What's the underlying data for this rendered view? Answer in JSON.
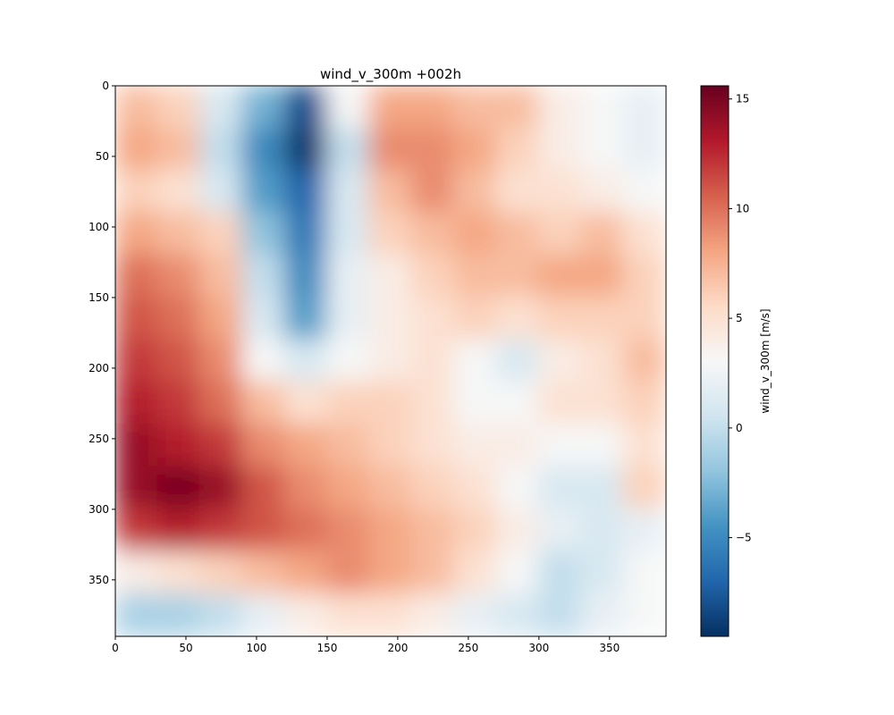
{
  "chart_data": {
    "type": "heatmap",
    "title": "wind_v_300m +002h",
    "xlabel": "",
    "ylabel": "",
    "colorbar_label": "wind_v_300m [m/s]",
    "colormap": "RdBu_r",
    "grid": false,
    "xlim": [
      0,
      390
    ],
    "ylim": [
      390,
      0
    ],
    "x_ticks": [
      0,
      50,
      100,
      150,
      200,
      250,
      300,
      350
    ],
    "y_ticks": [
      0,
      50,
      100,
      150,
      200,
      250,
      300,
      350
    ],
    "colorbar_range": [
      -9.5,
      15.6
    ],
    "colorbar_ticks": [
      -5,
      0,
      5,
      10,
      15
    ],
    "colorbar_tick_labels": [
      "−5",
      "0",
      "5",
      "10",
      "15"
    ],
    "grid_values": {
      "x_centers": [
        15,
        45,
        75,
        105,
        135,
        165,
        195,
        225,
        255,
        285,
        315,
        345,
        375
      ],
      "y_centers": [
        15,
        45,
        75,
        105,
        135,
        165,
        195,
        225,
        255,
        285,
        315,
        345,
        375
      ],
      "values": [
        [
          7,
          6,
          1,
          -3,
          -8,
          3,
          8,
          8,
          7,
          7,
          4,
          3,
          2
        ],
        [
          8,
          7,
          0,
          -5,
          -9,
          0,
          9,
          9,
          8,
          6,
          4,
          3,
          2
        ],
        [
          6,
          5,
          1,
          -4,
          -7,
          1,
          7,
          9,
          7,
          5,
          5,
          4,
          3
        ],
        [
          8,
          7,
          6,
          -2,
          -6,
          1,
          6,
          7,
          8,
          7,
          6,
          7,
          5
        ],
        [
          10,
          9,
          7,
          0,
          -5,
          2,
          4,
          6,
          7,
          7,
          8,
          8,
          6
        ],
        [
          11,
          10,
          8,
          1,
          -4,
          2,
          4,
          5,
          6,
          5,
          6,
          6,
          6
        ],
        [
          12,
          11,
          9,
          3,
          1,
          3,
          4,
          5,
          3,
          1,
          4,
          5,
          7
        ],
        [
          13,
          12,
          10,
          7,
          5,
          6,
          6,
          5,
          3,
          3,
          5,
          5,
          6
        ],
        [
          14,
          13,
          12,
          9,
          8,
          7,
          6,
          5,
          4,
          4,
          3,
          3,
          5
        ],
        [
          14,
          15,
          14,
          11,
          9,
          8,
          7,
          6,
          5,
          3,
          1,
          1,
          6
        ],
        [
          12,
          13,
          12,
          11,
          10,
          9,
          8,
          7,
          6,
          4,
          2,
          1,
          2
        ],
        [
          4,
          5,
          6,
          7,
          8,
          9,
          8,
          7,
          5,
          3,
          0,
          1,
          3
        ],
        [
          -1,
          -1,
          0,
          2,
          4,
          5,
          5,
          4,
          2,
          1,
          0,
          2,
          3
        ]
      ]
    }
  }
}
